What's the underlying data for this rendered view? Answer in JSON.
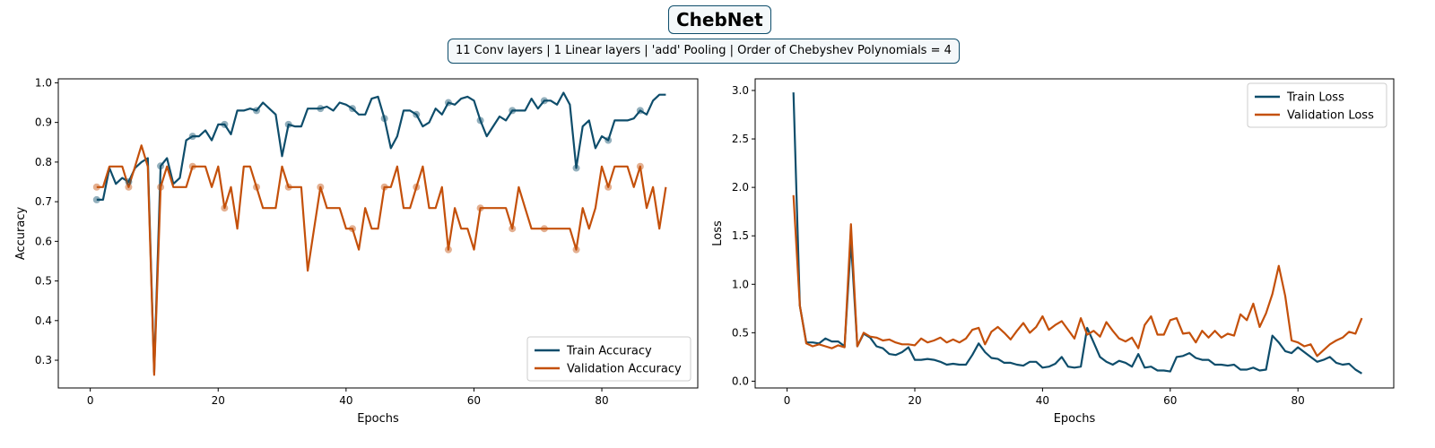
{
  "header": {
    "title": "ChebNet",
    "subtitle": "11 Conv layers | 1 Linear layers | 'add' Pooling | Order of Chebyshev Polynomials = 4"
  },
  "colors": {
    "train": "#0e4d6b",
    "validation": "#c4500a",
    "frame": "#0e4d6b"
  },
  "chart_data": [
    {
      "type": "line",
      "title": "",
      "xlabel": "Epochs",
      "ylabel": "Accuracy",
      "xlim": [
        -5,
        95
      ],
      "ylim": [
        0.23,
        1.01
      ],
      "xticks": [
        0,
        20,
        40,
        60,
        80
      ],
      "yticks": [
        0.3,
        0.4,
        0.5,
        0.6,
        0.7,
        0.8,
        0.9,
        1.0
      ],
      "grid": false,
      "legend": "lower-right",
      "x": [
        1,
        2,
        3,
        4,
        5,
        6,
        7,
        8,
        9,
        10,
        11,
        12,
        13,
        14,
        15,
        16,
        17,
        18,
        19,
        20,
        21,
        22,
        23,
        24,
        25,
        26,
        27,
        28,
        29,
        30,
        31,
        32,
        33,
        34,
        35,
        36,
        37,
        38,
        39,
        40,
        41,
        42,
        43,
        44,
        45,
        46,
        47,
        48,
        49,
        50,
        51,
        52,
        53,
        54,
        55,
        56,
        57,
        58,
        59,
        60,
        61,
        62,
        63,
        64,
        65,
        66,
        67,
        68,
        69,
        70,
        71,
        72,
        73,
        74,
        75,
        76,
        77,
        78,
        79,
        80,
        81,
        82,
        83,
        84,
        85,
        86,
        87,
        88,
        89,
        90
      ],
      "series": [
        {
          "name": "Train Accuracy",
          "color_key": "train",
          "values": [
            0.705,
            0.705,
            0.785,
            0.745,
            0.76,
            0.75,
            0.785,
            0.8,
            0.81,
            0.27,
            0.79,
            0.81,
            0.745,
            0.76,
            0.855,
            0.865,
            0.865,
            0.88,
            0.855,
            0.895,
            0.895,
            0.87,
            0.93,
            0.93,
            0.935,
            0.93,
            0.95,
            0.935,
            0.92,
            0.815,
            0.895,
            0.89,
            0.89,
            0.935,
            0.935,
            0.935,
            0.94,
            0.93,
            0.95,
            0.945,
            0.935,
            0.92,
            0.92,
            0.96,
            0.965,
            0.91,
            0.835,
            0.865,
            0.93,
            0.93,
            0.92,
            0.89,
            0.9,
            0.935,
            0.92,
            0.95,
            0.945,
            0.96,
            0.965,
            0.955,
            0.905,
            0.865,
            0.89,
            0.915,
            0.905,
            0.93,
            0.93,
            0.93,
            0.96,
            0.935,
            0.955,
            0.955,
            0.945,
            0.975,
            0.945,
            0.785,
            0.89,
            0.905,
            0.835,
            0.865,
            0.855,
            0.905,
            0.905,
            0.905,
            0.91,
            0.93,
            0.92,
            0.955,
            0.97,
            0.97
          ]
        },
        {
          "name": "Validation Accuracy",
          "color_key": "validation",
          "values": [
            0.737,
            0.737,
            0.789,
            0.789,
            0.789,
            0.737,
            0.789,
            0.842,
            0.789,
            0.263,
            0.737,
            0.789,
            0.737,
            0.737,
            0.737,
            0.789,
            0.789,
            0.789,
            0.737,
            0.789,
            0.684,
            0.737,
            0.632,
            0.789,
            0.789,
            0.737,
            0.684,
            0.684,
            0.684,
            0.789,
            0.737,
            0.737,
            0.737,
            0.526,
            0.632,
            0.737,
            0.684,
            0.684,
            0.684,
            0.632,
            0.632,
            0.579,
            0.684,
            0.632,
            0.632,
            0.737,
            0.737,
            0.789,
            0.684,
            0.684,
            0.737,
            0.789,
            0.684,
            0.684,
            0.737,
            0.579,
            0.684,
            0.632,
            0.632,
            0.579,
            0.684,
            0.684,
            0.684,
            0.684,
            0.684,
            0.632,
            0.737,
            0.684,
            0.632,
            0.632,
            0.632,
            0.632,
            0.632,
            0.632,
            0.632,
            0.579,
            0.684,
            0.632,
            0.684,
            0.789,
            0.737,
            0.789,
            0.789,
            0.789,
            0.737,
            0.789,
            0.684,
            0.737,
            0.632,
            0.737
          ]
        }
      ],
      "markers": [
        {
          "series": 0,
          "x": [
            1,
            6,
            11,
            16,
            21,
            26,
            31,
            36,
            41,
            46,
            51,
            56,
            61,
            66,
            71,
            76,
            81,
            86
          ]
        },
        {
          "series": 1,
          "x": [
            1,
            6,
            11,
            16,
            21,
            26,
            31,
            36,
            41,
            46,
            51,
            56,
            61,
            66,
            71,
            76,
            81,
            86
          ]
        }
      ]
    },
    {
      "type": "line",
      "title": "",
      "xlabel": "Epochs",
      "ylabel": "Loss",
      "xlim": [
        -5,
        95
      ],
      "ylim": [
        -0.07,
        3.12
      ],
      "xticks": [
        0,
        20,
        40,
        60,
        80
      ],
      "yticks": [
        0.0,
        0.5,
        1.0,
        1.5,
        2.0,
        2.5,
        3.0
      ],
      "grid": false,
      "legend": "upper-right",
      "x": [
        1,
        2,
        3,
        4,
        5,
        6,
        7,
        8,
        9,
        10,
        11,
        12,
        13,
        14,
        15,
        16,
        17,
        18,
        19,
        20,
        21,
        22,
        23,
        24,
        25,
        26,
        27,
        28,
        29,
        30,
        31,
        32,
        33,
        34,
        35,
        36,
        37,
        38,
        39,
        40,
        41,
        42,
        43,
        44,
        45,
        46,
        47,
        48,
        49,
        50,
        51,
        52,
        53,
        54,
        55,
        56,
        57,
        58,
        59,
        60,
        61,
        62,
        63,
        64,
        65,
        66,
        67,
        68,
        69,
        70,
        71,
        72,
        73,
        74,
        75,
        76,
        77,
        78,
        79,
        80,
        81,
        82,
        83,
        84,
        85,
        86,
        87,
        88,
        89,
        90
      ],
      "series": [
        {
          "name": "Train Loss",
          "color_key": "train",
          "values": [
            2.98,
            0.78,
            0.4,
            0.4,
            0.39,
            0.44,
            0.41,
            0.41,
            0.36,
            1.45,
            0.36,
            0.49,
            0.45,
            0.36,
            0.34,
            0.28,
            0.27,
            0.3,
            0.35,
            0.22,
            0.22,
            0.23,
            0.22,
            0.2,
            0.17,
            0.18,
            0.17,
            0.17,
            0.27,
            0.39,
            0.3,
            0.24,
            0.23,
            0.19,
            0.19,
            0.17,
            0.16,
            0.2,
            0.2,
            0.14,
            0.15,
            0.18,
            0.25,
            0.15,
            0.14,
            0.15,
            0.55,
            0.4,
            0.25,
            0.2,
            0.17,
            0.21,
            0.19,
            0.15,
            0.28,
            0.14,
            0.15,
            0.11,
            0.11,
            0.1,
            0.25,
            0.26,
            0.29,
            0.24,
            0.22,
            0.22,
            0.17,
            0.17,
            0.16,
            0.17,
            0.12,
            0.12,
            0.14,
            0.11,
            0.12,
            0.47,
            0.4,
            0.31,
            0.29,
            0.35,
            0.3,
            0.25,
            0.2,
            0.22,
            0.25,
            0.19,
            0.17,
            0.18,
            0.12,
            0.08
          ]
        },
        {
          "name": "Validation Loss",
          "color_key": "validation",
          "values": [
            1.92,
            0.78,
            0.39,
            0.36,
            0.38,
            0.36,
            0.34,
            0.37,
            0.35,
            1.62,
            0.36,
            0.5,
            0.46,
            0.45,
            0.42,
            0.43,
            0.4,
            0.38,
            0.38,
            0.37,
            0.44,
            0.4,
            0.42,
            0.45,
            0.4,
            0.43,
            0.4,
            0.44,
            0.53,
            0.55,
            0.38,
            0.51,
            0.56,
            0.5,
            0.43,
            0.52,
            0.6,
            0.5,
            0.56,
            0.67,
            0.53,
            0.58,
            0.62,
            0.53,
            0.44,
            0.65,
            0.48,
            0.52,
            0.46,
            0.61,
            0.52,
            0.44,
            0.41,
            0.45,
            0.34,
            0.58,
            0.67,
            0.48,
            0.48,
            0.63,
            0.65,
            0.49,
            0.5,
            0.4,
            0.52,
            0.45,
            0.52,
            0.45,
            0.49,
            0.47,
            0.69,
            0.63,
            0.8,
            0.56,
            0.7,
            0.9,
            1.19,
            0.88,
            0.42,
            0.4,
            0.36,
            0.38,
            0.26,
            0.32,
            0.38,
            0.42,
            0.45,
            0.51,
            0.49,
            0.65
          ]
        }
      ]
    }
  ]
}
